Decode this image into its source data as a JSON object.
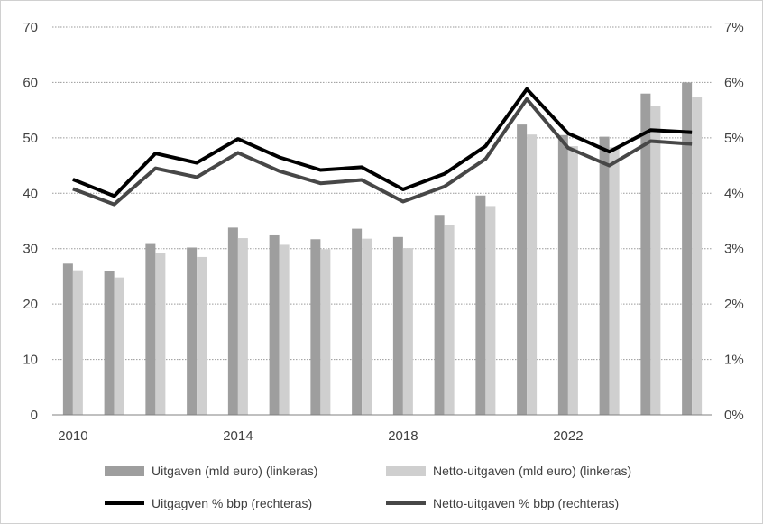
{
  "chart_data": {
    "type": "bar",
    "x": [
      2010,
      2011,
      2012,
      2013,
      2014,
      2015,
      2016,
      2017,
      2018,
      2019,
      2020,
      2021,
      2022,
      2023,
      2024,
      2025
    ],
    "x_tick_labels": [
      "2010",
      "2014",
      "2018",
      "2022"
    ],
    "left_axis": {
      "ylim": [
        0,
        70
      ],
      "ticks": [
        "0",
        "10",
        "20",
        "30",
        "40",
        "50",
        "60",
        "70"
      ]
    },
    "right_axis": {
      "ylim": [
        0,
        7
      ],
      "ticks": [
        "0%",
        "1%",
        "2%",
        "3%",
        "4%",
        "5%",
        "6%",
        "7%"
      ]
    },
    "grid": true,
    "legend_position": "bottom",
    "series": [
      {
        "name": "Uitgaven (mld euro) (linkeras)",
        "kind": "bar",
        "axis": "left",
        "color": "#9e9e9e",
        "values": [
          27.3,
          26.0,
          31.0,
          30.2,
          33.8,
          32.4,
          31.7,
          33.6,
          32.1,
          36.1,
          39.6,
          52.4,
          50.5,
          50.2,
          58.0,
          60.0
        ]
      },
      {
        "name": "Netto-uitgaven (mld euro) (linkeras)",
        "kind": "bar",
        "axis": "left",
        "color": "#cfcfcf",
        "values": [
          26.1,
          24.8,
          29.3,
          28.5,
          31.9,
          30.7,
          29.9,
          31.8,
          30.1,
          34.2,
          37.7,
          50.6,
          48.5,
          48.3,
          55.7,
          57.4
        ]
      },
      {
        "name": "Uitgagven % bbp (rechteras)",
        "kind": "line",
        "axis": "right",
        "color": "#000000",
        "values": [
          4.25,
          3.95,
          4.72,
          4.55,
          4.98,
          4.65,
          4.42,
          4.47,
          4.07,
          4.35,
          4.85,
          5.88,
          5.08,
          4.75,
          5.14,
          5.1
        ]
      },
      {
        "name": "Netto-uitgaven % bbp (rechteras)",
        "kind": "line",
        "axis": "right",
        "color": "#474747",
        "values": [
          4.08,
          3.8,
          4.45,
          4.29,
          4.73,
          4.4,
          4.18,
          4.24,
          3.85,
          4.12,
          4.62,
          5.7,
          4.82,
          4.5,
          4.94,
          4.89
        ]
      }
    ]
  }
}
